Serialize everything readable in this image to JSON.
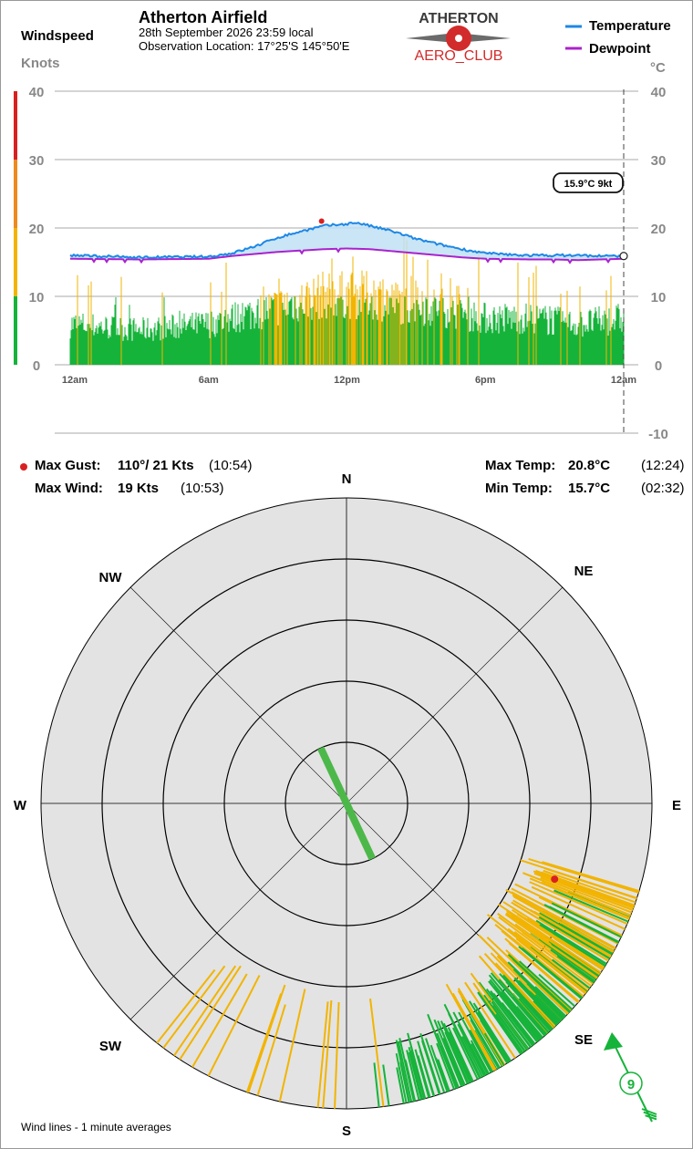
{
  "header": {
    "windspeed_label": "Windspeed",
    "knots_label": "Knots",
    "station": "Atherton Airfield",
    "datetime": "28th September 2026  23:59 local",
    "location": "Observation Location:  17°25'S 145°50'E",
    "logo_top": "ATHERTON",
    "logo_bottom": "AERO_CLUB",
    "celsius_label": "°C"
  },
  "legend": [
    {
      "name": "Temperature",
      "color": "#1e88e5"
    },
    {
      "name": "Dewpoint",
      "color": "#aa22cc"
    }
  ],
  "colors": {
    "wind_green": "#16b33a",
    "wind_amber": "#f2b400",
    "wind_red": "#d92020",
    "wind_orange": "#ef8a1f",
    "temp_fill": "#bfe0f5",
    "compass_fill": "#e3e3e3"
  },
  "tooltip": "15.9°C  9kt",
  "chart_data": {
    "type": "line",
    "title": "Atherton Airfield",
    "x_ticks": [
      "12am",
      "6am",
      "12pm",
      "6pm",
      "12am"
    ],
    "left_axis": {
      "label": "Knots",
      "ticks": [
        "0",
        "10",
        "20",
        "30",
        "40"
      ],
      "range": [
        0,
        40
      ]
    },
    "right_axis": {
      "label": "°C",
      "ticks": [
        "-10",
        "0",
        "10",
        "20",
        "30",
        "40"
      ],
      "range": [
        -10,
        40
      ]
    },
    "series": [
      {
        "name": "Temperature",
        "unit": "°C",
        "hours": [
          0,
          2,
          3,
          6,
          7,
          8,
          9,
          10,
          11,
          12,
          12.4,
          13,
          14,
          15,
          16,
          17,
          18,
          19,
          20,
          21,
          22,
          23,
          24
        ],
        "values": [
          16.0,
          15.8,
          15.7,
          15.8,
          16.3,
          17.3,
          18.6,
          19.5,
          20.3,
          20.6,
          20.8,
          20.3,
          19.5,
          18.4,
          17.6,
          16.9,
          16.3,
          16.1,
          16.0,
          16.0,
          16.0,
          15.9,
          15.9
        ]
      },
      {
        "name": "Dewpoint",
        "unit": "°C",
        "hours": [
          0,
          3,
          6,
          7,
          8,
          9,
          10,
          11,
          12,
          13,
          14,
          15,
          16,
          17,
          18,
          20,
          21,
          22,
          23,
          24
        ],
        "values": [
          15.5,
          15.4,
          15.5,
          15.9,
          16.2,
          16.5,
          16.7,
          16.9,
          17.0,
          16.9,
          16.6,
          16.3,
          16.0,
          15.7,
          15.5,
          15.4,
          15.4,
          15.3,
          15.4,
          15.5
        ]
      },
      {
        "name": "Windspeed",
        "unit": "kt",
        "hours": [
          0,
          3,
          6,
          7,
          8,
          9,
          10,
          11,
          12,
          13,
          14,
          15,
          16,
          17,
          18,
          20,
          22,
          24
        ],
        "values": [
          7,
          6,
          7,
          8,
          9,
          10,
          11,
          12,
          12,
          12,
          11,
          10,
          10,
          9,
          8,
          8,
          7,
          8
        ]
      }
    ],
    "wind_dir_deg": [
      [
        0,
        155
      ],
      [
        6,
        150
      ],
      [
        12,
        125
      ],
      [
        18,
        140
      ],
      [
        24,
        152
      ]
    ]
  },
  "stats": {
    "max_gust_label": "Max Gust:",
    "max_gust_value": "110°/  21 Kts",
    "max_gust_time": "(10:54)",
    "max_wind_label": "Max Wind:",
    "max_wind_value": "19 Kts",
    "max_wind_time": "(10:53)",
    "max_temp_label": "Max Temp:",
    "max_temp_value": "20.8°C",
    "max_temp_time": "(12:24)",
    "min_temp_label": "Min Temp:",
    "min_temp_value": "15.7°C",
    "min_temp_time": "(02:32)"
  },
  "compass": {
    "N": "N",
    "NE": "NE",
    "E": "E",
    "SE": "SE",
    "S": "S",
    "SW": "SW",
    "W": "W",
    "NW": "NW",
    "current_speed": "9",
    "current_dir_deg": 155,
    "gust_dir_deg": 110,
    "gust_kt": 21
  },
  "footer": "Wind lines - 1 minute averages"
}
